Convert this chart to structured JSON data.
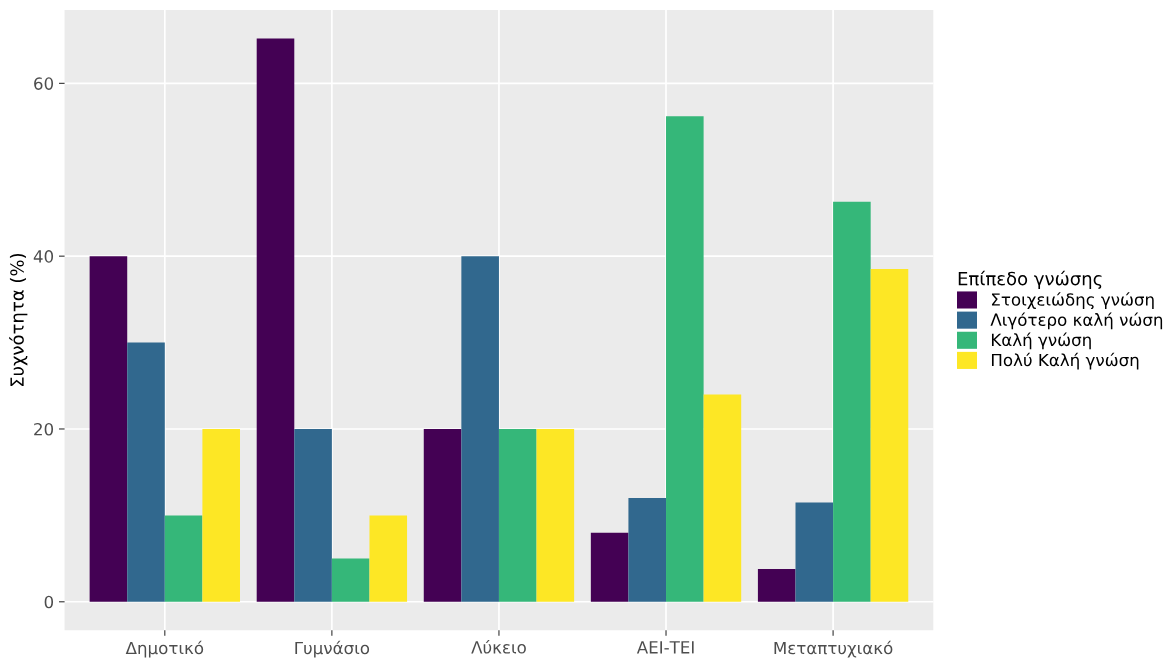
{
  "chart_data": {
    "type": "bar",
    "ylabel": "Συχνότητα (%)",
    "legend_title": "Επίπεδο γνώσης",
    "categories": [
      "Δημοτικό",
      "Γυμνάσιο",
      "Λύκειο",
      "ΑΕΙ-ΤΕΙ",
      "Μεταπτυχιακό"
    ],
    "series": [
      {
        "name": "Στοιχειώδης γνώση",
        "color": "#440154",
        "values": [
          40,
          65.2,
          20,
          8,
          3.8
        ]
      },
      {
        "name": "Λιγότερο καλή νώση",
        "color": "#31688e",
        "values": [
          30,
          20,
          40,
          12,
          11.5
        ]
      },
      {
        "name": "Καλή γνώση",
        "color": "#35b779",
        "values": [
          10,
          5,
          20,
          56.2,
          46.3
        ]
      },
      {
        "name": "Πολύ Καλή γνώση",
        "color": "#fde725",
        "values": [
          20,
          10,
          20,
          24,
          38.5
        ]
      }
    ],
    "ylim": [
      -3.3,
      68.5
    ],
    "yticks": [
      0,
      20,
      40,
      60
    ],
    "grid": true,
    "legend": "right"
  }
}
